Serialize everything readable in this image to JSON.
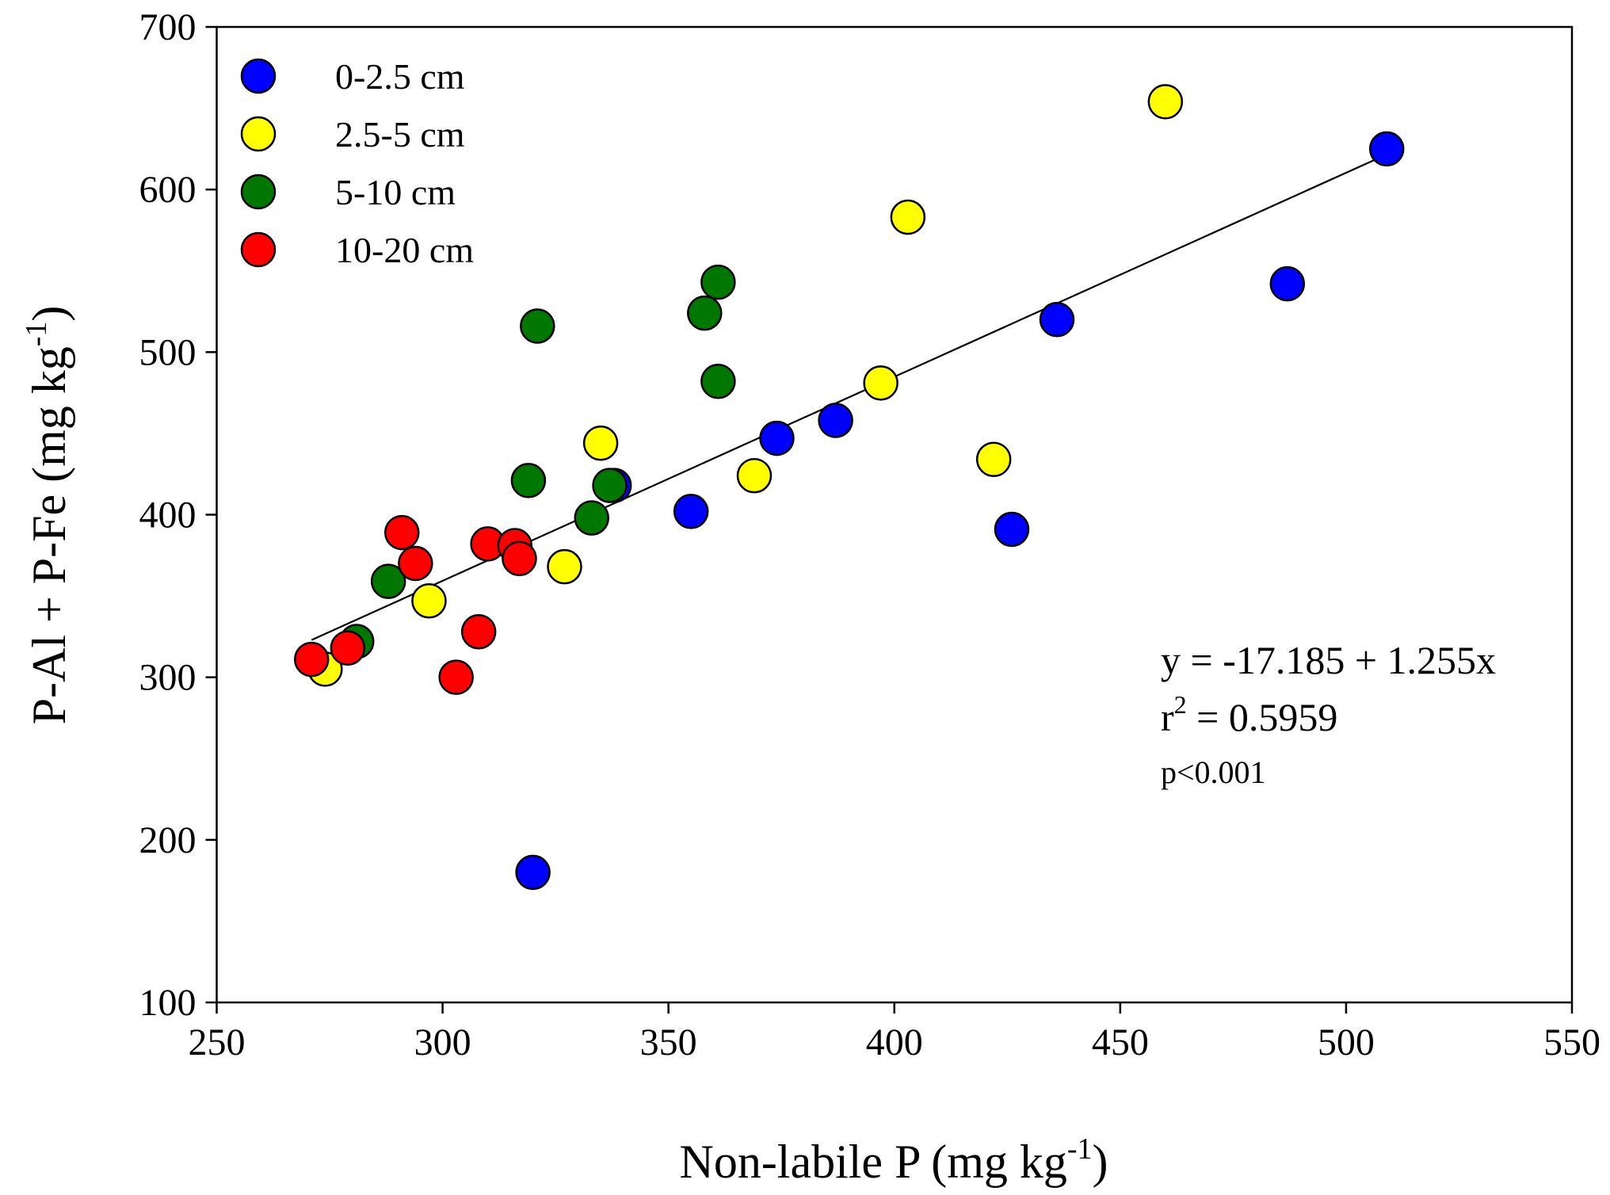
{
  "chart_data": {
    "type": "scatter",
    "xlabel": "Non-labile P (mg kg",
    "xlabel_sup": "-1",
    "xlabel_end": ")",
    "ylabel": "P-Al + P-Fe (mg kg",
    "ylabel_sup": "-1",
    "ylabel_end": ")",
    "xlim": [
      250,
      550
    ],
    "ylim": [
      100,
      700
    ],
    "xticks": [
      250,
      300,
      350,
      400,
      450,
      500,
      550
    ],
    "yticks": [
      100,
      200,
      300,
      400,
      500,
      600,
      700
    ],
    "grid": false,
    "legend_position": "top-left",
    "series": [
      {
        "name": "0-2.5 cm",
        "color": "#0000ff",
        "points": [
          [
            509,
            625
          ],
          [
            487,
            542
          ],
          [
            436,
            520
          ],
          [
            387,
            458
          ],
          [
            374,
            447
          ],
          [
            338,
            418
          ],
          [
            355,
            402
          ],
          [
            426,
            391
          ],
          [
            320,
            180
          ]
        ]
      },
      {
        "name": "2.5-5 cm",
        "color": "#ffff00",
        "points": [
          [
            460,
            654
          ],
          [
            403,
            583
          ],
          [
            397,
            481
          ],
          [
            422,
            434
          ],
          [
            369,
            424
          ],
          [
            335,
            444
          ],
          [
            327,
            368
          ],
          [
            297,
            347
          ],
          [
            274,
            305
          ]
        ]
      },
      {
        "name": "5-10 cm",
        "color": "#007800",
        "points": [
          [
            361,
            543
          ],
          [
            358,
            524
          ],
          [
            321,
            516
          ],
          [
            361,
            482
          ],
          [
            319,
            421
          ],
          [
            337,
            418
          ],
          [
            333,
            398
          ],
          [
            288,
            359
          ],
          [
            281,
            322
          ]
        ]
      },
      {
        "name": "10-20 cm",
        "color": "#ff0000",
        "points": [
          [
            291,
            389
          ],
          [
            294,
            370
          ],
          [
            310,
            382
          ],
          [
            316,
            381
          ],
          [
            317,
            373
          ],
          [
            308,
            328
          ],
          [
            303,
            300
          ],
          [
            279,
            318
          ],
          [
            271,
            311
          ]
        ]
      }
    ],
    "regression": {
      "intercept": -17.185,
      "slope": 1.255,
      "x_range": [
        271,
        509
      ],
      "equation": "y = -17.185 + 1.255x",
      "r2_label": "r",
      "r2_sup": "2",
      "r2_value": " = 0.5959",
      "p_value": "p<0.001"
    }
  }
}
